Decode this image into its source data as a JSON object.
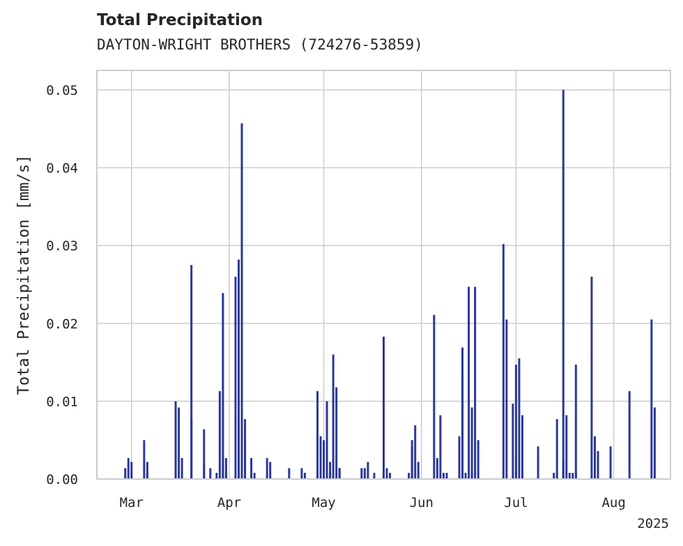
{
  "chart_data": {
    "type": "bar",
    "title": "Total Precipitation",
    "subtitle": "DAYTON-WRIGHT BROTHERS (724276-53859)",
    "ylabel": "Total Precipitation [mm/s]",
    "xlabel": "",
    "year_label": "2025",
    "ylim": [
      0,
      0.0525
    ],
    "yticks": [
      "0.00",
      "0.01",
      "0.02",
      "0.03",
      "0.04",
      "0.05"
    ],
    "xticks": [
      {
        "label": "Mar",
        "date": "2025-03-01"
      },
      {
        "label": "Apr",
        "date": "2025-04-01"
      },
      {
        "label": "May",
        "date": "2025-05-01"
      },
      {
        "label": "Jun",
        "date": "2025-06-01"
      },
      {
        "label": "Jul",
        "date": "2025-07-01"
      },
      {
        "label": "Aug",
        "date": "2025-08-01"
      }
    ],
    "xlim": [
      "2025-02-18",
      "2025-08-19"
    ],
    "grid": true,
    "bar_color": "#2b3896",
    "series": [
      {
        "x": [
          "2025-02-27",
          "2025-02-28",
          "2025-03-01",
          "2025-03-05",
          "2025-03-06",
          "2025-03-06",
          "2025-03-15",
          "2025-03-15",
          "2025-03-16",
          "2025-03-17",
          "2025-03-20",
          "2025-03-20",
          "2025-03-24",
          "2025-03-24",
          "2025-03-26",
          "2025-03-28",
          "2025-03-29",
          "2025-03-30",
          "2025-03-30",
          "2025-03-31",
          "2025-03-31",
          "2025-04-03",
          "2025-04-04",
          "2025-04-04",
          "2025-04-05",
          "2025-04-05",
          "2025-04-06",
          "2025-04-06",
          "2025-04-08",
          "2025-04-09",
          "2025-04-13",
          "2025-04-14",
          "2025-04-20",
          "2025-04-24",
          "2025-04-25",
          "2025-04-29",
          "2025-04-29",
          "2025-04-30",
          "2025-05-01",
          "2025-05-02",
          "2025-05-03",
          "2025-05-03",
          "2025-05-04",
          "2025-05-05",
          "2025-05-06",
          "2025-05-06",
          "2025-05-13",
          "2025-05-14",
          "2025-05-15",
          "2025-05-17",
          "2025-05-20",
          "2025-05-20",
          "2025-05-21",
          "2025-05-22",
          "2025-05-28",
          "2025-05-29",
          "2025-05-29",
          "2025-05-30",
          "2025-05-31",
          "2025-06-05",
          "2025-06-06",
          "2025-06-07",
          "2025-06-08",
          "2025-06-09",
          "2025-06-13",
          "2025-06-14",
          "2025-06-14",
          "2025-06-15",
          "2025-06-16",
          "2025-06-17",
          "2025-06-17",
          "2025-06-18",
          "2025-06-19",
          "2025-06-27",
          "2025-06-28",
          "2025-06-30",
          "2025-07-01",
          "2025-07-01",
          "2025-07-02",
          "2025-07-03",
          "2025-07-08",
          "2025-07-13",
          "2025-07-14",
          "2025-07-16",
          "2025-07-16",
          "2025-07-17",
          "2025-07-18",
          "2025-07-19",
          "2025-07-20",
          "2025-07-20",
          "2025-07-25",
          "2025-07-26",
          "2025-07-27",
          "2025-07-27",
          "2025-07-31",
          "2025-08-06",
          "2025-08-13",
          "2025-08-14"
        ],
        "values": [
          0.0014,
          0.0027,
          0.0022,
          0.005,
          0.0022,
          0.0008,
          0.0078,
          0.01,
          0.0092,
          0.0027,
          0.0275,
          0.0077,
          0.0018,
          0.0064,
          0.0014,
          0.0008,
          0.0113,
          0.0239,
          0.0027,
          0.0008,
          0.0027,
          0.026,
          0.0282,
          0.0077,
          0.0457,
          0.0077,
          0.0077,
          0.005,
          0.0027,
          0.0008,
          0.0027,
          0.0022,
          0.0014,
          0.0014,
          0.0008,
          0.0113,
          0.0008,
          0.0055,
          0.005,
          0.01,
          0.0022,
          0.0008,
          0.016,
          0.0118,
          0.0014,
          0.0014,
          0.0014,
          0.0014,
          0.0022,
          0.0008,
          0.0183,
          0.0069,
          0.0014,
          0.0008,
          0.0008,
          0.0042,
          0.005,
          0.0069,
          0.0022,
          0.0211,
          0.0027,
          0.0082,
          0.0008,
          0.0008,
          0.0055,
          0.0133,
          0.0169,
          0.0008,
          0.0247,
          0.0008,
          0.0092,
          0.0247,
          0.005,
          0.0302,
          0.0205,
          0.0097,
          0.0027,
          0.0147,
          0.0155,
          0.0082,
          0.0042,
          0.0008,
          0.0077,
          0.05,
          0.0022,
          0.0082,
          0.0008,
          0.0008,
          0.0008,
          0.0147,
          0.026,
          0.0055,
          0.0036,
          0.0027,
          0.0042,
          0.0113,
          0.0205,
          0.0092
        ]
      }
    ]
  }
}
